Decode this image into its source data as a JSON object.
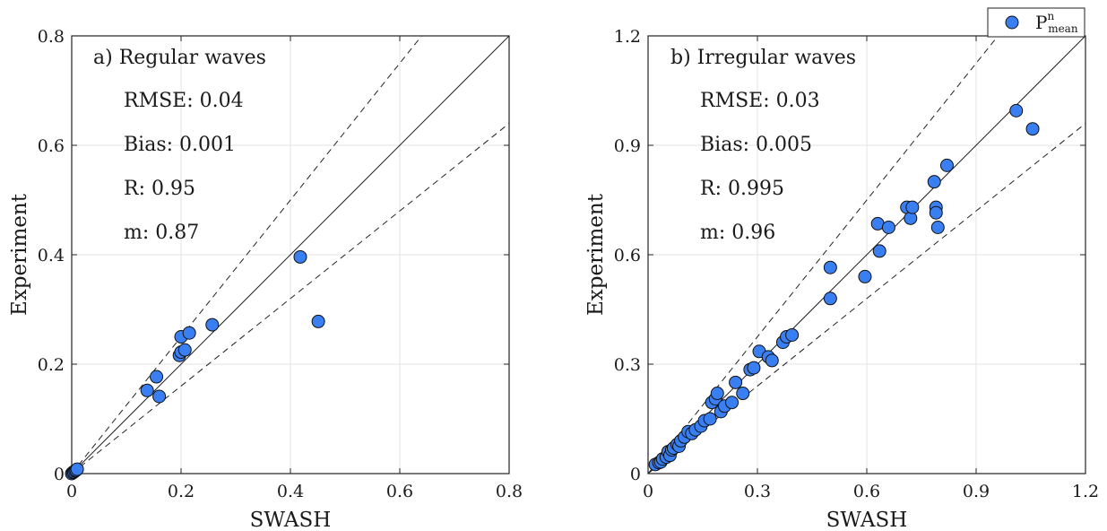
{
  "chart_data": [
    {
      "type": "scatter",
      "panel_label": "a) Regular waves",
      "xlabel": "SWASH",
      "ylabel": "Experiment",
      "xlim": [
        0,
        0.8
      ],
      "ylim": [
        0,
        0.8
      ],
      "xticks": [
        "0",
        "0.2",
        "0.4",
        "0.6",
        "0.8"
      ],
      "yticks": [
        "0",
        "0.2",
        "0.4",
        "0.6",
        "0.8"
      ],
      "grid": true,
      "stats": [
        "RMSE: 0.04",
        "Bias: 0.001",
        "R: 0.95",
        "m: 0.87"
      ],
      "reference_lines": {
        "identity_slope": 1,
        "dashed_slopes": [
          1.25,
          0.8
        ]
      },
      "points": [
        [
          0.0,
          0.0
        ],
        [
          0.002,
          0.002
        ],
        [
          0.004,
          0.003
        ],
        [
          0.006,
          0.005
        ],
        [
          0.008,
          0.006
        ],
        [
          0.01,
          0.008
        ],
        [
          0.138,
          0.152
        ],
        [
          0.155,
          0.177
        ],
        [
          0.16,
          0.141
        ],
        [
          0.197,
          0.216
        ],
        [
          0.2,
          0.222
        ],
        [
          0.2,
          0.25
        ],
        [
          0.207,
          0.226
        ],
        [
          0.215,
          0.257
        ],
        [
          0.257,
          0.272
        ],
        [
          0.418,
          0.396
        ],
        [
          0.451,
          0.278
        ]
      ]
    },
    {
      "type": "scatter",
      "panel_label": "b) Irregular waves",
      "xlabel": "SWASH",
      "ylabel": "Experiment",
      "xlim": [
        0,
        1.2
      ],
      "ylim": [
        0,
        1.2
      ],
      "xticks": [
        "0",
        "0.3",
        "0.6",
        "0.9",
        "1.2"
      ],
      "yticks": [
        "0",
        "0.3",
        "0.6",
        "0.9",
        "1.2"
      ],
      "grid": true,
      "stats": [
        "RMSE: 0.03",
        "Bias: 0.005",
        "R: 0.995",
        "m: 0.96"
      ],
      "reference_lines": {
        "identity_slope": 1,
        "dashed_slopes": [
          1.25,
          0.8
        ]
      },
      "legend": {
        "placement": "top-right",
        "series_main": "P",
        "sup": "n",
        "sub": "mean"
      },
      "points": [
        [
          0.02,
          0.025
        ],
        [
          0.03,
          0.03
        ],
        [
          0.035,
          0.032
        ],
        [
          0.04,
          0.04
        ],
        [
          0.05,
          0.045
        ],
        [
          0.055,
          0.06
        ],
        [
          0.06,
          0.05
        ],
        [
          0.065,
          0.065
        ],
        [
          0.07,
          0.07
        ],
        [
          0.08,
          0.08
        ],
        [
          0.085,
          0.075
        ],
        [
          0.09,
          0.09
        ],
        [
          0.1,
          0.1
        ],
        [
          0.11,
          0.115
        ],
        [
          0.12,
          0.11
        ],
        [
          0.13,
          0.12
        ],
        [
          0.145,
          0.13
        ],
        [
          0.155,
          0.145
        ],
        [
          0.17,
          0.15
        ],
        [
          0.175,
          0.195
        ],
        [
          0.185,
          0.205
        ],
        [
          0.19,
          0.22
        ],
        [
          0.2,
          0.17
        ],
        [
          0.21,
          0.185
        ],
        [
          0.23,
          0.195
        ],
        [
          0.24,
          0.25
        ],
        [
          0.26,
          0.22
        ],
        [
          0.28,
          0.285
        ],
        [
          0.29,
          0.29
        ],
        [
          0.305,
          0.335
        ],
        [
          0.33,
          0.32
        ],
        [
          0.34,
          0.31
        ],
        [
          0.37,
          0.36
        ],
        [
          0.38,
          0.375
        ],
        [
          0.395,
          0.38
        ],
        [
          0.5,
          0.565
        ],
        [
          0.5,
          0.48
        ],
        [
          0.595,
          0.54
        ],
        [
          0.63,
          0.685
        ],
        [
          0.635,
          0.61
        ],
        [
          0.66,
          0.675
        ],
        [
          0.71,
          0.73
        ],
        [
          0.72,
          0.7
        ],
        [
          0.725,
          0.73
        ],
        [
          0.785,
          0.8
        ],
        [
          0.79,
          0.73
        ],
        [
          0.79,
          0.715
        ],
        [
          0.795,
          0.675
        ],
        [
          0.82,
          0.845
        ],
        [
          1.01,
          0.995
        ],
        [
          1.055,
          0.945
        ]
      ]
    }
  ],
  "colors": {
    "marker_fill": "#3a7ff2",
    "marker_edge": "#111111",
    "axis": "#222222",
    "grid": "#e3e3e3"
  }
}
